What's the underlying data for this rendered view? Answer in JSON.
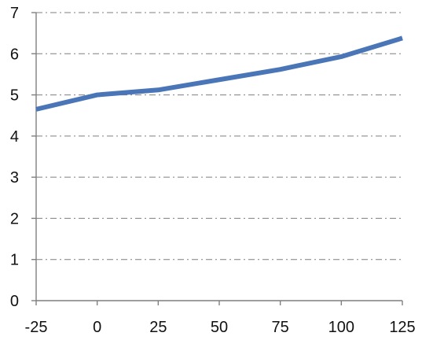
{
  "chart_data": {
    "type": "line",
    "title": "",
    "xlabel": "",
    "ylabel": "",
    "x": [
      -25,
      0,
      25,
      50,
      75,
      100,
      125
    ],
    "series": [
      {
        "values": [
          4.65,
          5.0,
          5.12,
          5.37,
          5.62,
          5.93,
          6.38
        ],
        "color": "#4a76b8"
      }
    ],
    "x_ticks": [
      "-25",
      "0",
      "25",
      "50",
      "75",
      "100",
      "125"
    ],
    "y_ticks": [
      "0",
      "1",
      "2",
      "3",
      "4",
      "5",
      "6",
      "7"
    ],
    "xlim": [
      -25,
      125
    ],
    "ylim": [
      0,
      7
    ],
    "grid": {
      "horizontal": true,
      "vertical": false,
      "style": "dash-dot",
      "color": "#7f7f7f"
    },
    "legend": "none"
  }
}
